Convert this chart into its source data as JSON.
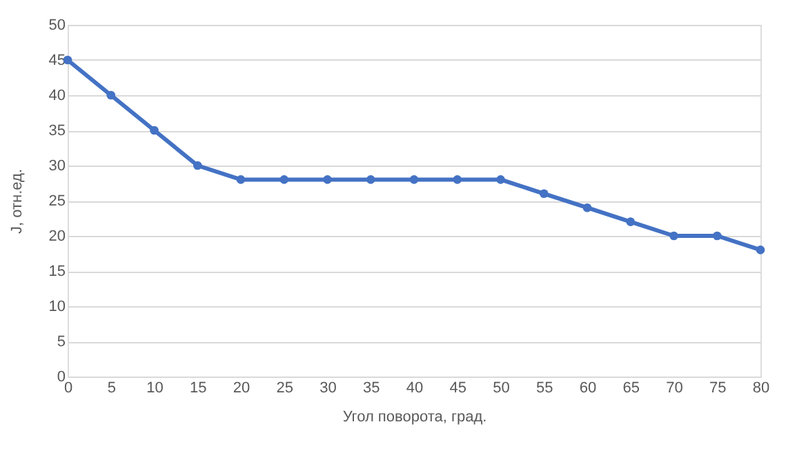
{
  "chart_data": {
    "type": "line",
    "xlabel": "Угол поворота, град.",
    "ylabel": "J, отн.ед.",
    "x": [
      0,
      5,
      10,
      15,
      20,
      25,
      30,
      35,
      40,
      45,
      50,
      55,
      60,
      65,
      70,
      75,
      80
    ],
    "series": [
      {
        "color": "#4472c4",
        "values": [
          45,
          40,
          35,
          30,
          28,
          28,
          28,
          28,
          28,
          28,
          28,
          26,
          24,
          22,
          20,
          20,
          18
        ]
      }
    ],
    "xlim": [
      0,
      80
    ],
    "xticks": [
      0,
      5,
      10,
      15,
      20,
      25,
      30,
      35,
      40,
      45,
      50,
      55,
      60,
      65,
      70,
      75,
      80
    ],
    "ylim": [
      0,
      50
    ],
    "yticks": [
      0,
      5,
      10,
      15,
      20,
      25,
      30,
      35,
      40,
      45,
      50
    ],
    "grid": "y",
    "marker": "circle",
    "line_style": "solid"
  }
}
